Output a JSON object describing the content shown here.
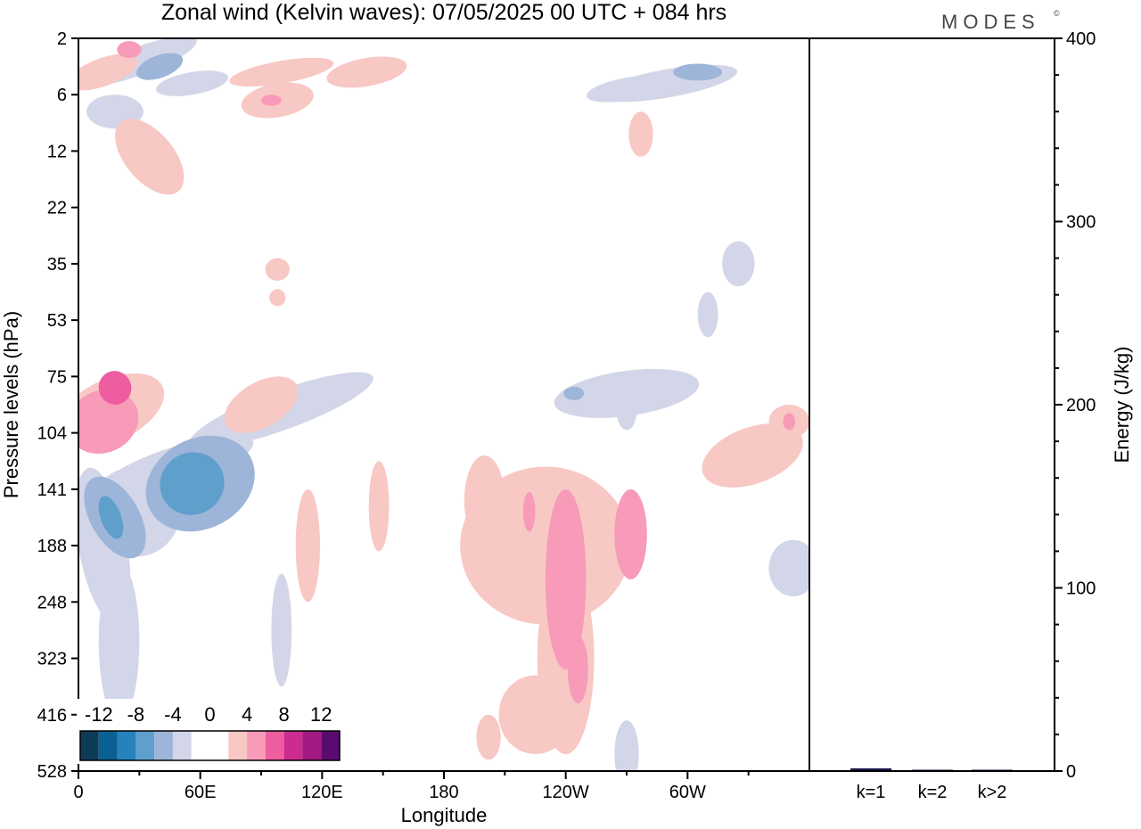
{
  "header": {
    "title": "Zonal wind (Kelvin waves):  07/05/2025  00 UTC  + 084 hrs",
    "brand": "MODES",
    "brand_mark": "©"
  },
  "chart_data": [
    {
      "type": "heatmap",
      "title": "Zonal wind (Kelvin waves):  07/05/2025  00 UTC  + 084 hrs",
      "xlabel": "Longitude",
      "ylabel": "Pressure levels (hPa)",
      "x_ticks": [
        {
          "label": "0",
          "lon": 0
        },
        {
          "label": "60E",
          "lon": 60
        },
        {
          "label": "120E",
          "lon": 120
        },
        {
          "label": "180",
          "lon": 180
        },
        {
          "label": "120W",
          "lon": 240
        },
        {
          "label": "60W",
          "lon": 300
        }
      ],
      "xlim": [
        0,
        360
      ],
      "y_levels": [
        "2",
        "6",
        "12",
        "22",
        "35",
        "53",
        "75",
        "104",
        "141",
        "188",
        "248",
        "323",
        "416",
        "528"
      ],
      "y_scale": "level-index",
      "colorbar": {
        "tick_labels": [
          "-12",
          "-8",
          "-4",
          "0",
          "4",
          "8",
          "12"
        ],
        "tick_values": [
          -12,
          -8,
          -4,
          0,
          4,
          8,
          12
        ],
        "boundaries": [
          -14,
          -12,
          -10,
          -8,
          -6,
          -4,
          -2,
          2,
          4,
          6,
          8,
          10,
          12,
          14
        ],
        "colors": [
          "#0d3b57",
          "#0a5f93",
          "#2582bd",
          "#5f9fcc",
          "#9db5d8",
          "#d3d6e8",
          "#ffffff",
          "#f8c8c4",
          "#f79bb8",
          "#ed5d9f",
          "#cc2b8f",
          "#a11a82",
          "#5a0c6e"
        ],
        "placement": "bottom-left"
      },
      "contour_colors": {
        "neg1": "#d3d6e8",
        "neg2": "#9db5d8",
        "neg3": "#5f9fcc",
        "pos1": "#f8c8c4",
        "pos2": "#f79bb8",
        "pos3": "#ed5d9f"
      }
    },
    {
      "type": "bar",
      "categories": [
        "k=1",
        "k=2",
        "k>2"
      ],
      "values": [
        1.5,
        0.4,
        0.4
      ],
      "ylabel": "Energy (J/kg)",
      "ylim": [
        0,
        400
      ],
      "y_ticks": [
        0,
        100,
        200,
        300,
        400
      ],
      "bar_color": "#1a1a4e"
    }
  ]
}
